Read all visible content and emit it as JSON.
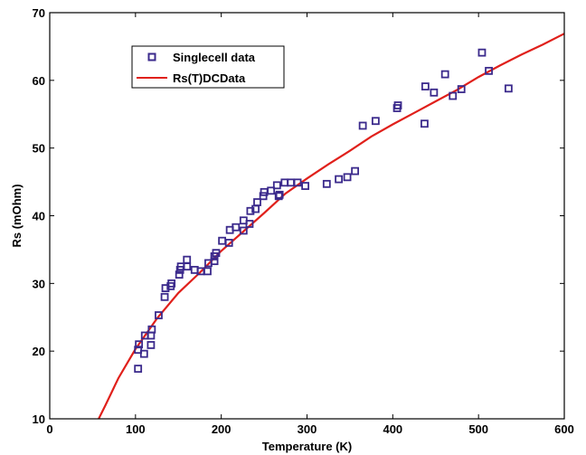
{
  "chart_data": {
    "type": "scatter",
    "title": "",
    "xlabel": "Temperature (K)",
    "ylabel": "Rs (mOhm)",
    "xlim": [
      0,
      600
    ],
    "ylim": [
      10,
      70
    ],
    "xticks": [
      0,
      100,
      200,
      300,
      400,
      500,
      600
    ],
    "yticks": [
      10,
      20,
      30,
      40,
      50,
      60,
      70
    ],
    "grid": false,
    "legend_position": "top-left",
    "series": [
      {
        "name": "Singlecell data",
        "kind": "scatter",
        "marker": "square",
        "color": "#3b2a8c",
        "points": [
          [
            103,
            17.4
          ],
          [
            103,
            20.2
          ],
          [
            104,
            21.0
          ],
          [
            110,
            19.6
          ],
          [
            111,
            22.3
          ],
          [
            118,
            20.9
          ],
          [
            118,
            22.3
          ],
          [
            119,
            23.2
          ],
          [
            127,
            25.3
          ],
          [
            134,
            28.0
          ],
          [
            135,
            29.3
          ],
          [
            141,
            29.6
          ],
          [
            142,
            30.0
          ],
          [
            151,
            31.3
          ],
          [
            152,
            32.0
          ],
          [
            153,
            32.5
          ],
          [
            160,
            33.5
          ],
          [
            160,
            32.5
          ],
          [
            169,
            32.0
          ],
          [
            176,
            31.8
          ],
          [
            184,
            31.8
          ],
          [
            185,
            33.0
          ],
          [
            192,
            33.3
          ],
          [
            192,
            34.0
          ],
          [
            194,
            34.5
          ],
          [
            201,
            36.3
          ],
          [
            209,
            36.0
          ],
          [
            210,
            37.9
          ],
          [
            217,
            38.3
          ],
          [
            226,
            37.8
          ],
          [
            226,
            39.3
          ],
          [
            233,
            38.8
          ],
          [
            234,
            40.7
          ],
          [
            240,
            41.0
          ],
          [
            242,
            42.0
          ],
          [
            249,
            42.9
          ],
          [
            250,
            43.5
          ],
          [
            258,
            43.7
          ],
          [
            265,
            44.5
          ],
          [
            267,
            42.9
          ],
          [
            268,
            43.1
          ],
          [
            274,
            44.9
          ],
          [
            281,
            44.9
          ],
          [
            289,
            44.9
          ],
          [
            298,
            44.4
          ],
          [
            323,
            44.7
          ],
          [
            337,
            45.4
          ],
          [
            347,
            45.7
          ],
          [
            356,
            46.6
          ],
          [
            365,
            53.3
          ],
          [
            380,
            54.0
          ],
          [
            405,
            55.9
          ],
          [
            406,
            56.3
          ],
          [
            437,
            53.6
          ],
          [
            438,
            59.1
          ],
          [
            448,
            58.2
          ],
          [
            461,
            60.9
          ],
          [
            470,
            57.7
          ],
          [
            480,
            58.7
          ],
          [
            504,
            64.1
          ],
          [
            512,
            61.4
          ],
          [
            535,
            58.8
          ]
        ]
      },
      {
        "name": "Rs(T)DCData",
        "kind": "line",
        "color": "#e0201b",
        "points": [
          [
            57,
            10.0
          ],
          [
            65,
            12.0
          ],
          [
            80,
            16.0
          ],
          [
            100,
            20.3
          ],
          [
            125,
            24.8
          ],
          [
            150,
            28.6
          ],
          [
            175,
            31.6
          ],
          [
            200,
            34.8
          ],
          [
            225,
            37.6
          ],
          [
            250,
            40.4
          ],
          [
            275,
            43.3
          ],
          [
            300,
            45.5
          ],
          [
            325,
            47.6
          ],
          [
            350,
            49.6
          ],
          [
            375,
            51.7
          ],
          [
            400,
            53.5
          ],
          [
            425,
            55.2
          ],
          [
            450,
            56.9
          ],
          [
            475,
            58.6
          ],
          [
            500,
            60.5
          ],
          [
            525,
            62.2
          ],
          [
            550,
            63.8
          ],
          [
            575,
            65.3
          ],
          [
            600,
            66.9
          ]
        ]
      }
    ]
  }
}
